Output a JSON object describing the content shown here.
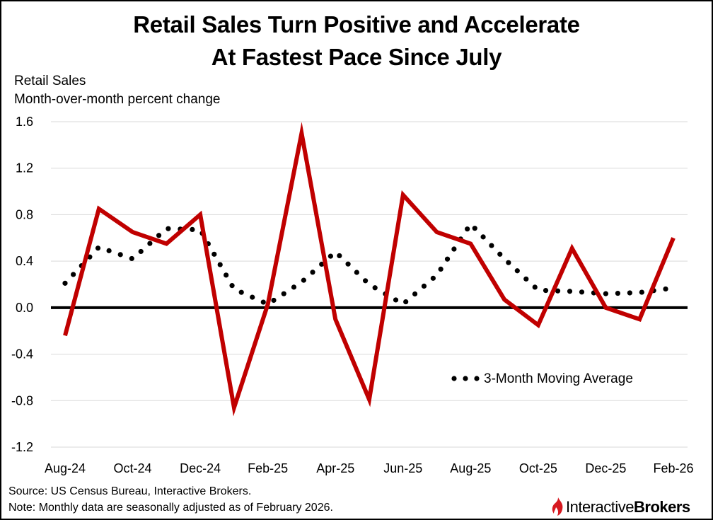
{
  "title_line1": "Retail Sales Turn Positive and Accelerate",
  "title_line2": "At Fastest Pace Since July",
  "source": "Source: US Census Bureau, Interactive Brokers.",
  "note": "Note: Monthly data are seasonally adjusted as of February 2026.",
  "logo": {
    "part1": "Interactive",
    "part2": "Brokers",
    "icon": "flame-icon",
    "color": "#d71920"
  },
  "colors": {
    "series_line": "#c00000",
    "moving_average": "#000000",
    "grid": "#d9d9d9",
    "zero_line": "#000000"
  },
  "chart_data": {
    "type": "line",
    "ylabel": "Retail Sales",
    "ysublabel": "Month-over-month percent change",
    "ylim": [
      -1.2,
      1.6
    ],
    "yticks": [
      "1.6",
      "1.2",
      "0.8",
      "0.4",
      "0.0",
      "-0.4",
      "-0.8",
      "-1.2"
    ],
    "ytick_values": [
      1.6,
      1.2,
      0.8,
      0.4,
      0.0,
      -0.4,
      -0.8,
      -1.2
    ],
    "grid": true,
    "legend_position": "bottom-right",
    "x": [
      "Aug-24",
      "Sep-24",
      "Oct-24",
      "Nov-24",
      "Dec-24",
      "Jan-25",
      "Feb-25",
      "Mar-25",
      "Apr-25",
      "May-25",
      "Jun-25",
      "Jul-25",
      "Aug-25",
      "Sep-25",
      "Oct-25",
      "Nov-25",
      "Dec-25",
      "Jan-26",
      "Feb-26"
    ],
    "xtick_labels": [
      "Aug-24",
      "Oct-24",
      "Dec-24",
      "Feb-25",
      "Apr-25",
      "Jun-25",
      "Aug-25",
      "Oct-25",
      "Dec-25",
      "Feb-26"
    ],
    "series": [
      {
        "values": [
          -0.24,
          0.85,
          0.65,
          0.55,
          0.8,
          -0.86,
          0.03,
          1.5,
          -0.1,
          -0.79,
          0.97,
          0.65,
          0.55,
          0.07,
          -0.15,
          0.51,
          0.0,
          -0.1,
          0.6
        ],
        "style": "solid"
      },
      {
        "name": "3-Month Moving Average",
        "values": [
          0.21,
          0.52,
          0.42,
          0.68,
          0.67,
          0.16,
          0.03,
          0.22,
          0.48,
          0.2,
          0.03,
          0.28,
          0.72,
          0.42,
          0.15,
          0.14,
          0.12,
          0.13,
          0.17
        ],
        "style": "dotted"
      }
    ]
  }
}
